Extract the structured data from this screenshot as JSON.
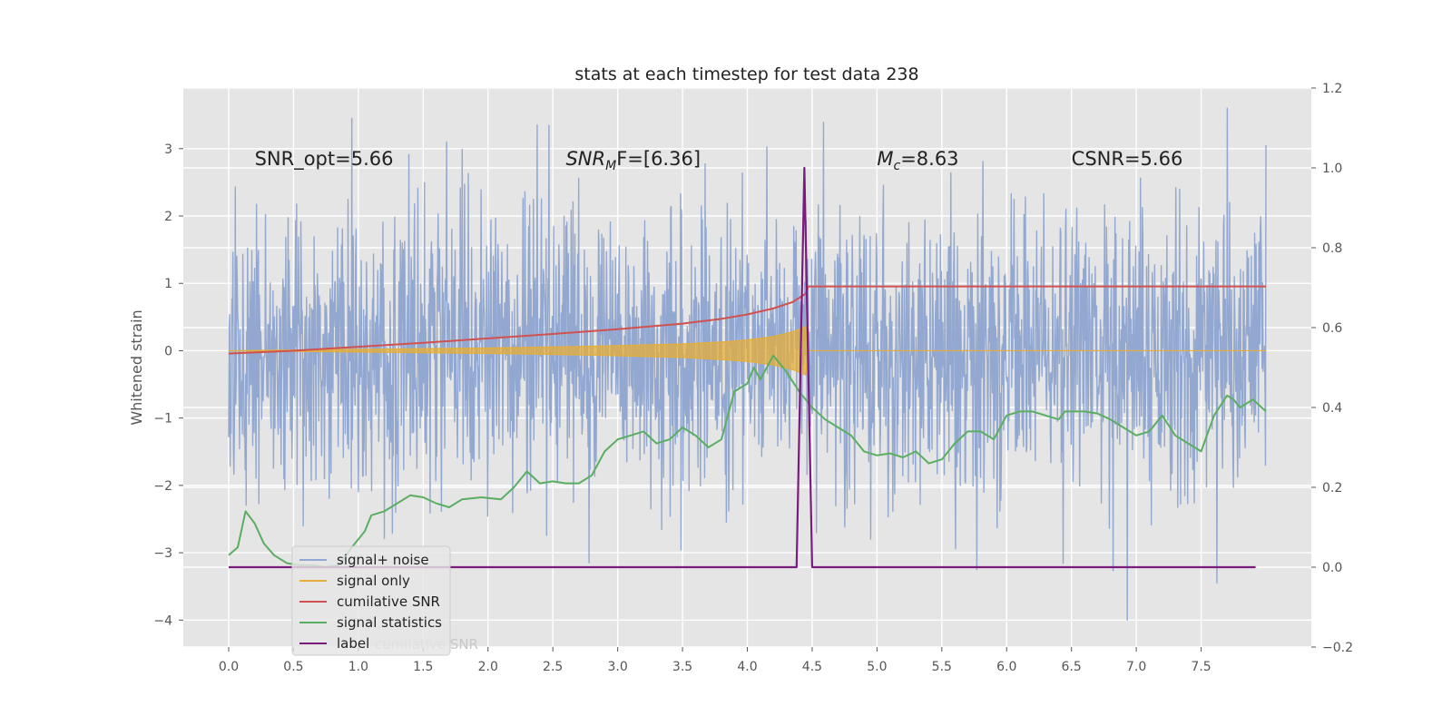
{
  "chart_data": {
    "type": "line",
    "title": "stats at each timestep for test data 238",
    "ylabel": "Whitened strain",
    "xlim": [
      -0.35,
      8.35
    ],
    "ylim": [
      -4.4,
      3.9
    ],
    "y2lim": [
      -0.2,
      1.2
    ],
    "x_ticks": [
      0.0,
      0.5,
      1.0,
      1.5,
      2.0,
      2.5,
      3.0,
      3.5,
      4.0,
      4.5,
      5.0,
      5.5,
      6.0,
      6.5,
      7.0,
      7.5
    ],
    "x_tick_labels": [
      "0.0",
      "0.5",
      "1.0",
      "1.5",
      "2.0",
      "2.5",
      "3.0",
      "3.5",
      "4.0",
      "4.5",
      "5.0",
      "5.5",
      "6.0",
      "6.5",
      "7.0",
      "7.5"
    ],
    "y_ticks": [
      -4,
      -3,
      -2,
      -1,
      0,
      1,
      2,
      3
    ],
    "y_tick_labels": [
      "−4",
      "−3",
      "−2",
      "−1",
      "0",
      "1",
      "2",
      "3"
    ],
    "y2_ticks": [
      -0.2,
      0.0,
      0.2,
      0.4,
      0.6,
      0.8,
      1.0,
      1.2
    ],
    "y2_tick_labels": [
      "−0.2",
      "0.0",
      "0.2",
      "0.4",
      "0.6",
      "0.8",
      "1.0",
      "1.2"
    ],
    "grid": true,
    "legend_position": "lower-left",
    "annotations": [
      {
        "text": "SNR_opt=5.66",
        "x": 0.2,
        "y": 2.85
      },
      {
        "text_main": "SNR",
        "text_sub": "M",
        "text_rest": "F=[6.36]",
        "x": 2.6,
        "y": 2.85
      },
      {
        "text_main": "M",
        "text_sub": "c",
        "text_rest": "=8.63",
        "x": 5.0,
        "y": 2.85
      },
      {
        "text": "CSNR=5.66",
        "x": 6.5,
        "y": 2.85
      }
    ],
    "ghost_legend_text": "cumilative SNR",
    "series": [
      {
        "name": "signal+ noise",
        "color": "#92a8d1",
        "axis": "left",
        "description_x_range": [
          0.0,
          8.0
        ],
        "spikes": [
          {
            "x": 0.95,
            "y": 3.45
          },
          {
            "x": 1.68,
            "y": 3.1
          },
          {
            "x": 2.38,
            "y": 3.35
          },
          {
            "x": 7.7,
            "y": 3.6
          },
          {
            "x": 6.93,
            "y": -4.0
          },
          {
            "x": 7.62,
            "y": -3.45
          },
          {
            "x": 5.77,
            "y": -3.25
          },
          {
            "x": 2.78,
            "y": -3.15
          }
        ]
      },
      {
        "name": "signal only",
        "color": "#e5ae38",
        "axis": "left",
        "envelope": [
          [
            0.0,
            0.0
          ],
          [
            0.5,
            0.01
          ],
          [
            1.0,
            0.02
          ],
          [
            1.5,
            0.03
          ],
          [
            2.0,
            0.04
          ],
          [
            2.5,
            0.055
          ],
          [
            3.0,
            0.075
          ],
          [
            3.5,
            0.1
          ],
          [
            3.8,
            0.13
          ],
          [
            4.0,
            0.16
          ],
          [
            4.2,
            0.21
          ],
          [
            4.35,
            0.28
          ],
          [
            4.45,
            0.36
          ],
          [
            4.47,
            0.0
          ],
          [
            8.0,
            0.0
          ]
        ]
      },
      {
        "name": "cumilative SNR",
        "color": "#d0514f",
        "axis": "right",
        "points": [
          [
            0.0,
            0.535
          ],
          [
            0.5,
            0.542
          ],
          [
            1.0,
            0.552
          ],
          [
            1.5,
            0.562
          ],
          [
            2.0,
            0.573
          ],
          [
            2.5,
            0.584
          ],
          [
            3.0,
            0.596
          ],
          [
            3.5,
            0.61
          ],
          [
            3.8,
            0.622
          ],
          [
            4.0,
            0.633
          ],
          [
            4.2,
            0.648
          ],
          [
            4.35,
            0.664
          ],
          [
            4.45,
            0.685
          ],
          [
            4.47,
            0.703
          ],
          [
            8.0,
            0.703
          ]
        ]
      },
      {
        "name": "signal statistics",
        "color": "#5aae61",
        "axis": "right",
        "points": [
          [
            0.0,
            0.03
          ],
          [
            0.07,
            0.05
          ],
          [
            0.13,
            0.14
          ],
          [
            0.2,
            0.11
          ],
          [
            0.27,
            0.06
          ],
          [
            0.35,
            0.03
          ],
          [
            0.45,
            0.01
          ],
          [
            0.55,
            0.005
          ],
          [
            0.65,
            0.005
          ],
          [
            0.75,
            0.0
          ],
          [
            0.85,
            0.005
          ],
          [
            0.95,
            0.05
          ],
          [
            1.05,
            0.09
          ],
          [
            1.1,
            0.13
          ],
          [
            1.2,
            0.14
          ],
          [
            1.3,
            0.16
          ],
          [
            1.4,
            0.18
          ],
          [
            1.5,
            0.175
          ],
          [
            1.6,
            0.16
          ],
          [
            1.7,
            0.15
          ],
          [
            1.8,
            0.17
          ],
          [
            1.95,
            0.175
          ],
          [
            2.1,
            0.17
          ],
          [
            2.2,
            0.2
          ],
          [
            2.3,
            0.24
          ],
          [
            2.4,
            0.21
          ],
          [
            2.5,
            0.215
          ],
          [
            2.6,
            0.21
          ],
          [
            2.7,
            0.21
          ],
          [
            2.8,
            0.23
          ],
          [
            2.9,
            0.29
          ],
          [
            3.0,
            0.32
          ],
          [
            3.1,
            0.33
          ],
          [
            3.2,
            0.34
          ],
          [
            3.3,
            0.31
          ],
          [
            3.4,
            0.32
          ],
          [
            3.5,
            0.35
          ],
          [
            3.6,
            0.33
          ],
          [
            3.7,
            0.3
          ],
          [
            3.8,
            0.32
          ],
          [
            3.9,
            0.44
          ],
          [
            4.0,
            0.46
          ],
          [
            4.05,
            0.5
          ],
          [
            4.1,
            0.47
          ],
          [
            4.2,
            0.53
          ],
          [
            4.3,
            0.49
          ],
          [
            4.4,
            0.44
          ],
          [
            4.5,
            0.4
          ],
          [
            4.6,
            0.37
          ],
          [
            4.7,
            0.35
          ],
          [
            4.8,
            0.33
          ],
          [
            4.9,
            0.29
          ],
          [
            5.0,
            0.28
          ],
          [
            5.1,
            0.285
          ],
          [
            5.2,
            0.275
          ],
          [
            5.3,
            0.29
          ],
          [
            5.4,
            0.26
          ],
          [
            5.5,
            0.27
          ],
          [
            5.6,
            0.31
          ],
          [
            5.7,
            0.34
          ],
          [
            5.8,
            0.34
          ],
          [
            5.9,
            0.32
          ],
          [
            6.0,
            0.38
          ],
          [
            6.1,
            0.39
          ],
          [
            6.2,
            0.39
          ],
          [
            6.3,
            0.38
          ],
          [
            6.4,
            0.37
          ],
          [
            6.45,
            0.39
          ],
          [
            6.5,
            0.39
          ],
          [
            6.6,
            0.39
          ],
          [
            6.7,
            0.385
          ],
          [
            6.8,
            0.37
          ],
          [
            6.9,
            0.35
          ],
          [
            7.0,
            0.33
          ],
          [
            7.1,
            0.34
          ],
          [
            7.2,
            0.38
          ],
          [
            7.3,
            0.33
          ],
          [
            7.4,
            0.31
          ],
          [
            7.5,
            0.29
          ],
          [
            7.6,
            0.38
          ],
          [
            7.7,
            0.43
          ],
          [
            7.75,
            0.42
          ],
          [
            7.8,
            0.4
          ],
          [
            7.9,
            0.42
          ],
          [
            8.0,
            0.39
          ]
        ]
      },
      {
        "name": "label",
        "color": "#7b1b7d",
        "axis": "right",
        "points": [
          [
            0.0,
            0.0
          ],
          [
            4.38,
            0.0
          ],
          [
            4.44,
            1.0
          ],
          [
            4.5,
            0.0
          ],
          [
            7.92,
            0.0
          ]
        ]
      }
    ]
  }
}
